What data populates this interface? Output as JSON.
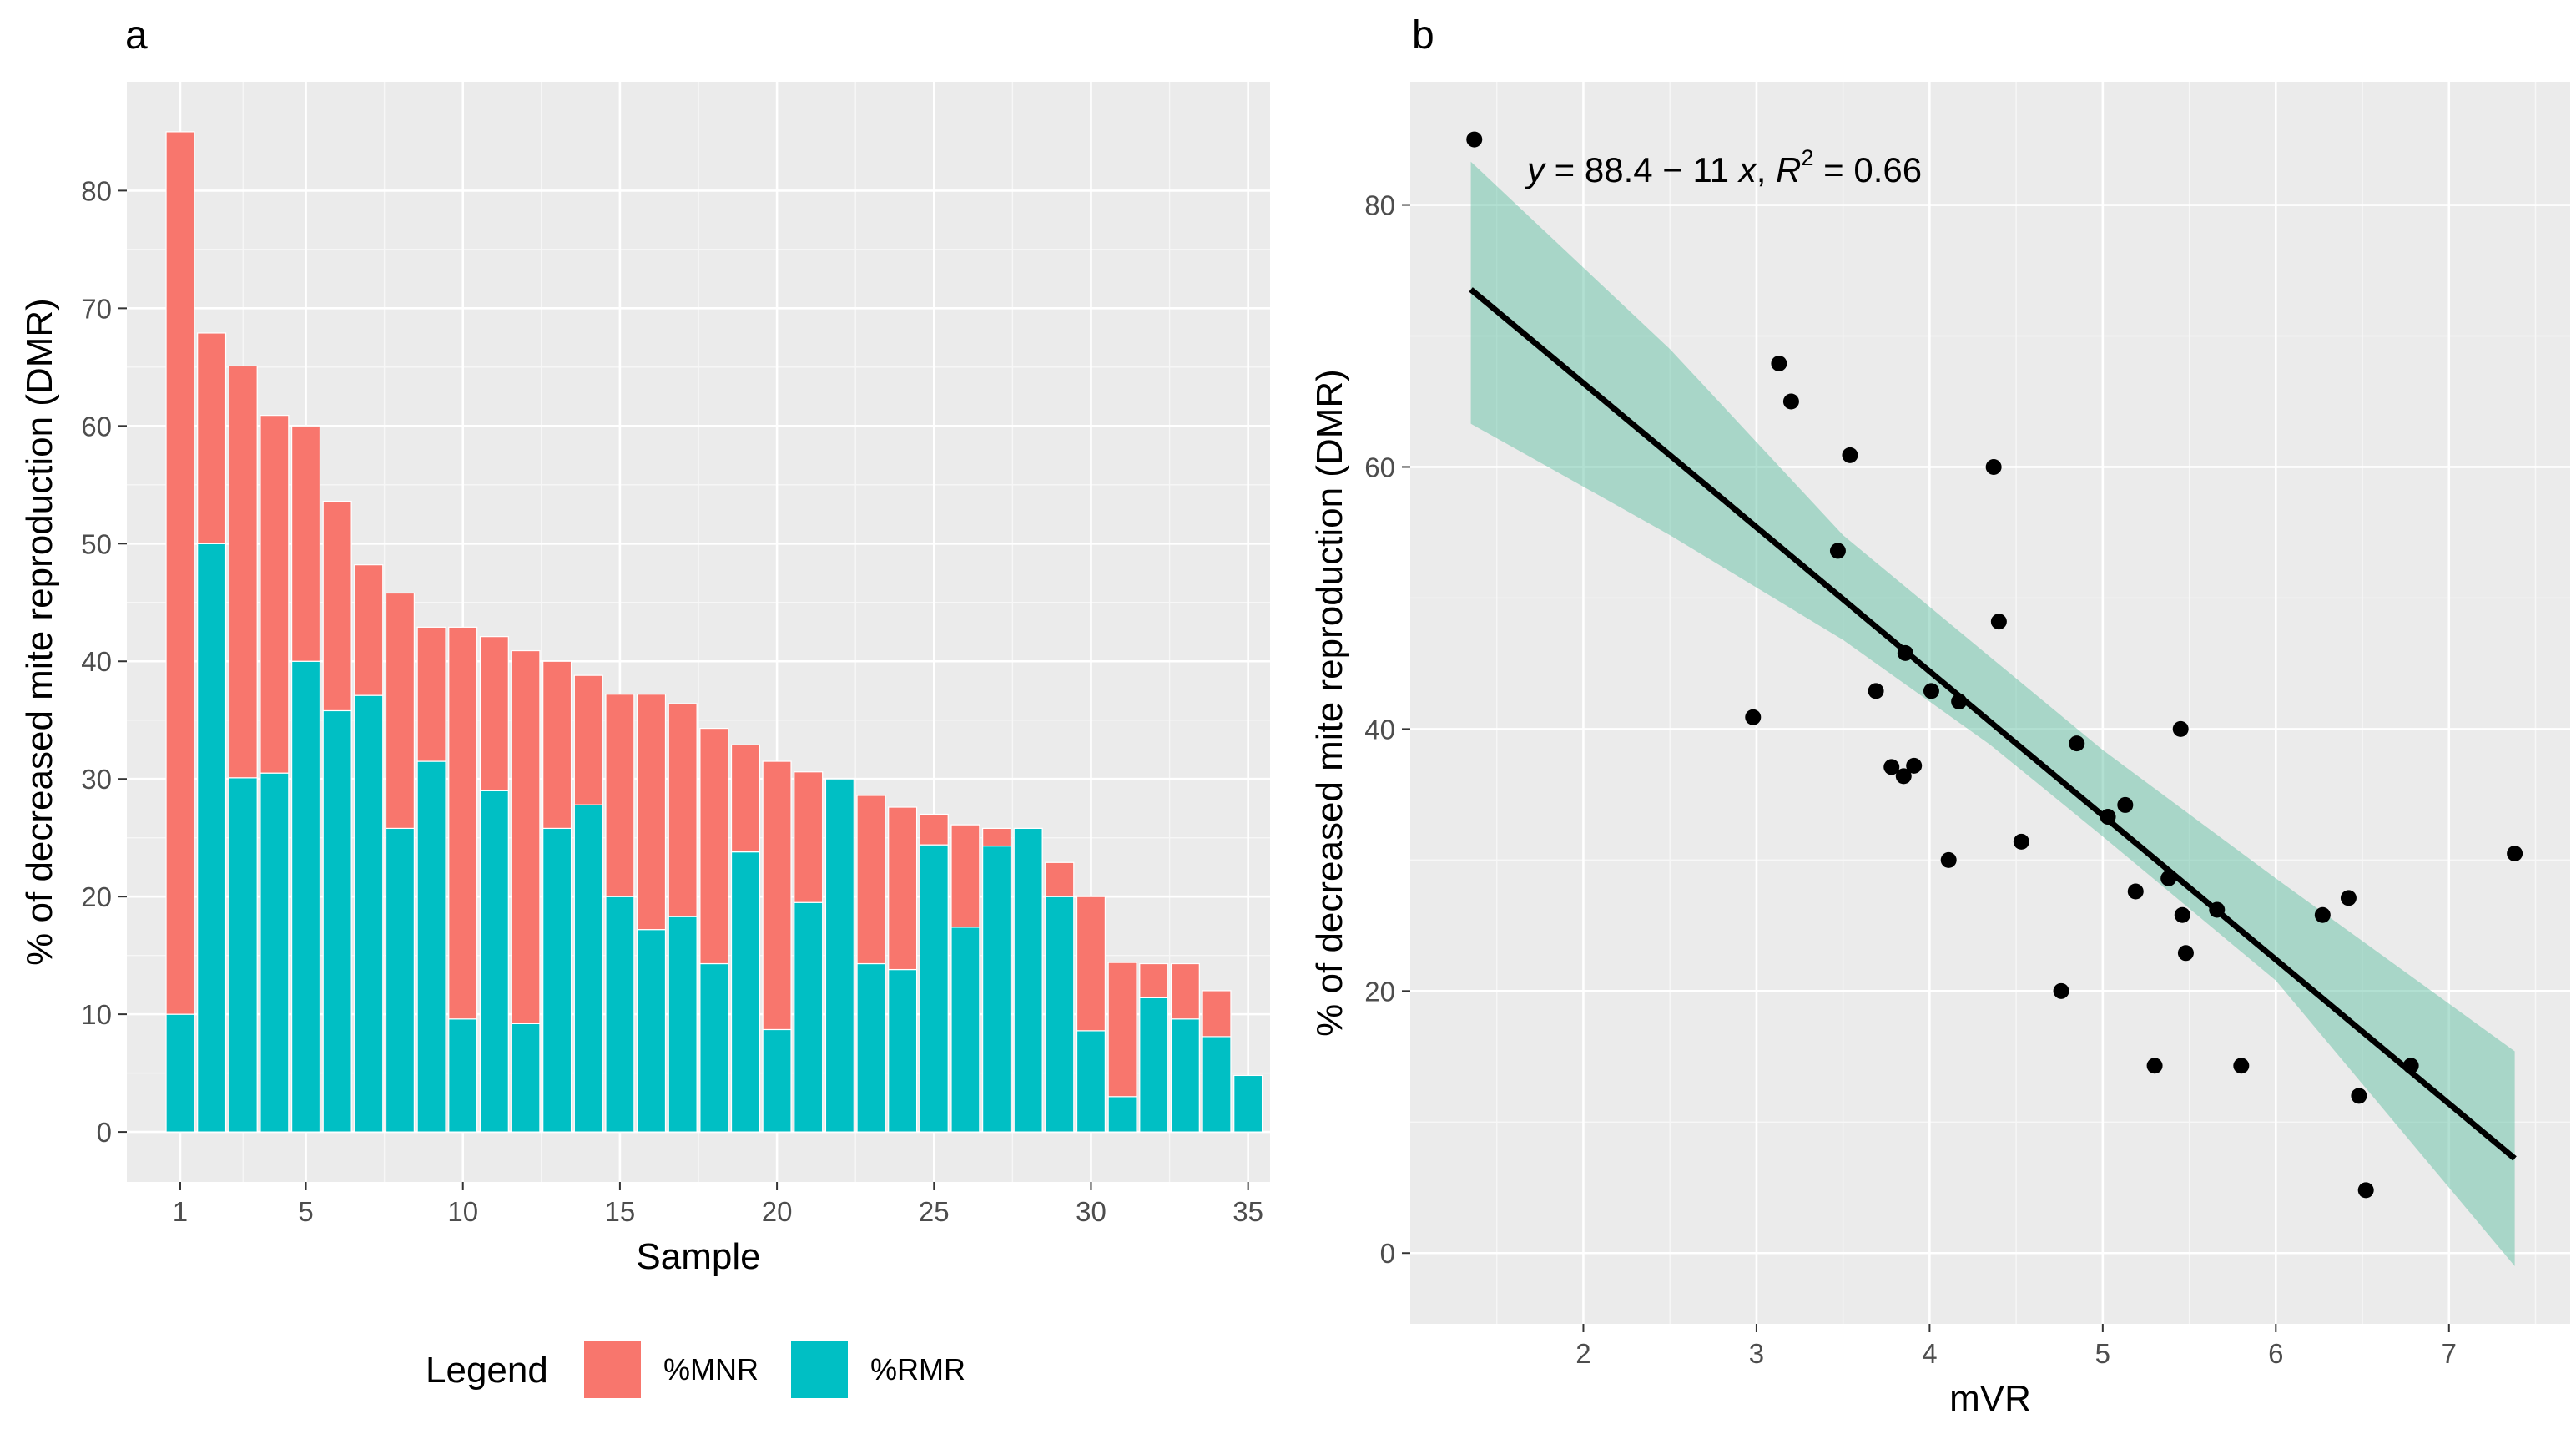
{
  "chart_data": [
    {
      "type": "bar",
      "stacked": true,
      "tag": "a",
      "xlabel": "Sample",
      "ylabel": "% of decreased mite reproduction (DMR)",
      "xlim": [
        -0.7,
        35.7
      ],
      "ylim": [
        -4.25,
        89.25
      ],
      "xticks": [
        1,
        5,
        10,
        15,
        20,
        25,
        30,
        35
      ],
      "xtick_labels": [
        "1",
        "5",
        "10",
        "15",
        "20",
        "25",
        "30",
        "35"
      ],
      "yticks": [
        0,
        10,
        20,
        30,
        40,
        50,
        60,
        70,
        80
      ],
      "ytick_labels": [
        "0",
        "10",
        "20",
        "30",
        "40",
        "50",
        "60",
        "70",
        "80"
      ],
      "legend": {
        "title": "Legend",
        "position": "bottom",
        "entries": [
          {
            "label": "%MNR",
            "color": "#f8766d"
          },
          {
            "label": "%RMR",
            "color": "#00bfc4"
          }
        ]
      },
      "categories": [
        1,
        2,
        3,
        4,
        5,
        6,
        7,
        8,
        9,
        10,
        11,
        12,
        13,
        14,
        15,
        16,
        17,
        18,
        19,
        20,
        21,
        22,
        23,
        24,
        25,
        26,
        27,
        28,
        29,
        30,
        31,
        32,
        33,
        34,
        35
      ],
      "series": [
        {
          "name": "%RMR",
          "color": "#00bfc4",
          "values": [
            10,
            50,
            30.1,
            30.5,
            40,
            35.8,
            37.1,
            25.8,
            31.5,
            9.6,
            29,
            9.2,
            25.8,
            27.8,
            20,
            17.2,
            18.3,
            14.3,
            23.8,
            8.7,
            19.5,
            30,
            14.3,
            13.8,
            24.4,
            17.4,
            24.3,
            25.8,
            20,
            8.6,
            3,
            11.4,
            9.6,
            8.1,
            4.8
          ]
        },
        {
          "name": "%MNR",
          "color": "#f8766d",
          "values": [
            75,
            17.9,
            35,
            30.4,
            20,
            17.8,
            11.1,
            20,
            11.4,
            33.3,
            13.1,
            31.7,
            14.2,
            11,
            17.2,
            20,
            18.1,
            20,
            9.1,
            22.8,
            11.1,
            0,
            14.3,
            13.8,
            2.6,
            8.7,
            1.5,
            0,
            2.9,
            11.4,
            11.4,
            2.9,
            4.7,
            3.9,
            0
          ]
        }
      ]
    },
    {
      "type": "scatter",
      "tag": "b",
      "xlabel": "mVR",
      "ylabel": "% of decreased mite reproduction (DMR)",
      "xlim": [
        1.0,
        7.7
      ],
      "ylim": [
        -5.4,
        89.4
      ],
      "xticks": [
        2,
        3,
        4,
        5,
        6,
        7
      ],
      "xtick_labels": [
        "2",
        "3",
        "4",
        "5",
        "6",
        "7"
      ],
      "yticks": [
        0,
        20,
        40,
        60,
        80
      ],
      "ytick_labels": [
        "0",
        "20",
        "40",
        "60",
        "80"
      ],
      "annotation": {
        "text_y": "y",
        "text_eq": " = 88.4 − 11 ",
        "text_x": "x",
        "text_sep": ", ",
        "text_R": "R",
        "text_sup": "2",
        "text_r2": " = 0.66"
      },
      "fit": {
        "intercept": 88.4,
        "slope": -11,
        "x_from": 1.35,
        "x_to": 7.38,
        "r2": 0.66
      },
      "confidence_band": {
        "color": "#66c2a5",
        "x": [
          1.35,
          2.5,
          3.5,
          4.35,
          5.0,
          6.0,
          7.38
        ],
        "lower": [
          63.3,
          54.8,
          46.8,
          38.8,
          31.8,
          20.8,
          -1.0
        ],
        "upper": [
          83.3,
          69.0,
          54.8,
          45.5,
          38.4,
          28.6,
          15.4
        ]
      },
      "points": [
        {
          "x": 1.37,
          "y": 85
        },
        {
          "x": 2.98,
          "y": 40.9
        },
        {
          "x": 3.13,
          "y": 67.9
        },
        {
          "x": 3.2,
          "y": 65
        },
        {
          "x": 3.47,
          "y": 53.6
        },
        {
          "x": 3.54,
          "y": 60.9
        },
        {
          "x": 3.69,
          "y": 42.9
        },
        {
          "x": 3.78,
          "y": 37.1
        },
        {
          "x": 3.85,
          "y": 36.4
        },
        {
          "x": 3.86,
          "y": 45.8
        },
        {
          "x": 3.91,
          "y": 37.2
        },
        {
          "x": 4.01,
          "y": 42.9
        },
        {
          "x": 4.11,
          "y": 30
        },
        {
          "x": 4.17,
          "y": 42.1
        },
        {
          "x": 4.37,
          "y": 60
        },
        {
          "x": 4.4,
          "y": 48.2
        },
        {
          "x": 4.53,
          "y": 31.4
        },
        {
          "x": 4.76,
          "y": 20
        },
        {
          "x": 4.85,
          "y": 38.9
        },
        {
          "x": 5.03,
          "y": 33.3
        },
        {
          "x": 5.13,
          "y": 34.2
        },
        {
          "x": 5.19,
          "y": 27.6
        },
        {
          "x": 5.3,
          "y": 14.3
        },
        {
          "x": 5.38,
          "y": 28.6
        },
        {
          "x": 5.45,
          "y": 40
        },
        {
          "x": 5.46,
          "y": 25.8
        },
        {
          "x": 5.48,
          "y": 22.9
        },
        {
          "x": 5.66,
          "y": 26.2
        },
        {
          "x": 5.8,
          "y": 14.3
        },
        {
          "x": 6.27,
          "y": 25.8
        },
        {
          "x": 6.42,
          "y": 27.1
        },
        {
          "x": 6.48,
          "y": 12
        },
        {
          "x": 6.52,
          "y": 4.8
        },
        {
          "x": 6.78,
          "y": 14.3
        },
        {
          "x": 7.38,
          "y": 30.5
        }
      ]
    }
  ]
}
